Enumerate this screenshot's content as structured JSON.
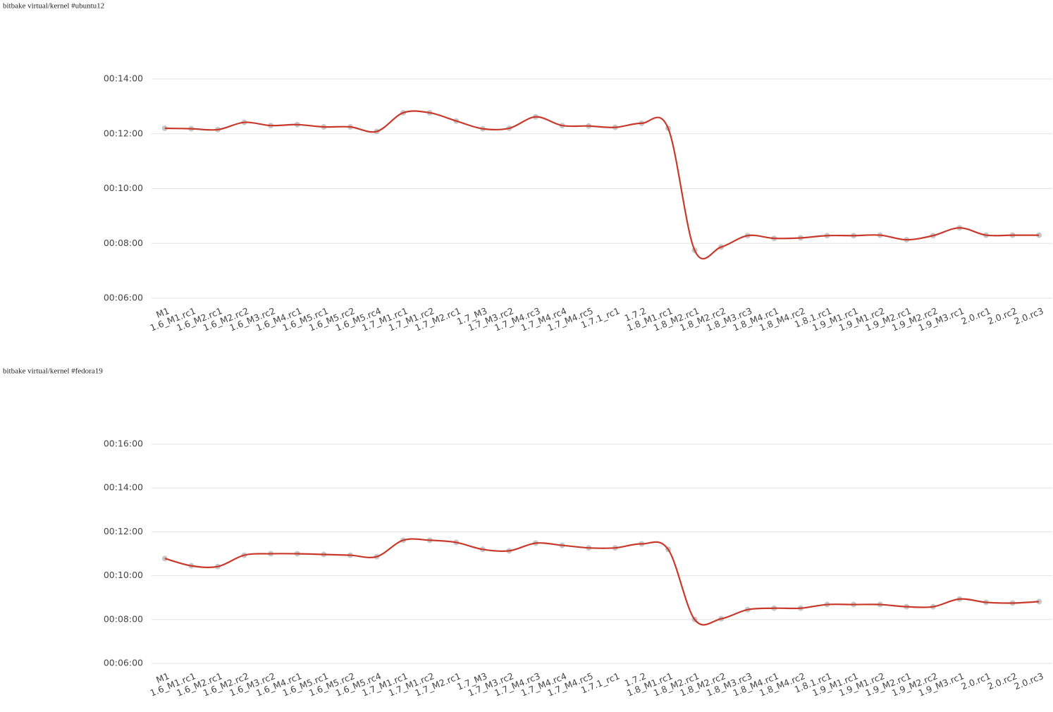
{
  "chart_data": [
    {
      "type": "line",
      "title": "bitbake virtual/kernel #ubuntu12",
      "categories": [
        "M1",
        "1.6_M1.rc1",
        "1.6_M2.rc1",
        "1.6_M2.rc2",
        "1.6_M3.rc2",
        "1.6_M4.rc1",
        "1.6_M5.rc1",
        "1.6_M5.rc2",
        "1.6_M5.rc4",
        "1.7_M1.rc1",
        "1.7_M1.rc2",
        "1.7_M2.rc1",
        "1.7_M3",
        "1.7_M3.rc2",
        "1.7_M4.rc3",
        "1.7_M4.rc4",
        "1.7_M4.rc5",
        "1.7.1_rc1",
        "1.7.2",
        "1.8_M1.rc1",
        "1.8_M2.rc1",
        "1.8_M2.rc2",
        "1.8_M3.rc3",
        "1.8_M4.rc1",
        "1.8_M4.rc2",
        "1.8.1.rc1",
        "1.9_M1.rc1",
        "1.9_M1.rc2",
        "1.9_M2.rc1",
        "1.9_M2.rc2",
        "1.9_M3.rc1",
        "2.0.rc1",
        "2.0.rc2",
        "2.0.rc3"
      ],
      "values": [
        732,
        731,
        729,
        745,
        738,
        740,
        735,
        735,
        725,
        766,
        766,
        748,
        731,
        732,
        757,
        738,
        737,
        734,
        743,
        732,
        465,
        472,
        497,
        491,
        492,
        497,
        497,
        498,
        488,
        497,
        514,
        498,
        498,
        498
      ],
      "color": "#c9392b",
      "ylim": [
        360,
        840
      ],
      "yticks": [
        {
          "value": 360,
          "label": "00:06:00"
        },
        {
          "value": 480,
          "label": "00:08:00"
        },
        {
          "value": 600,
          "label": "00:10:00"
        },
        {
          "value": 720,
          "label": "00:12:00"
        },
        {
          "value": 840,
          "label": "00:14:00"
        }
      ],
      "grid": true
    },
    {
      "type": "line",
      "title": "bitbake virtual/kernel #fedora19",
      "categories": [
        "M1",
        "1.6_M1.rc1",
        "1.6_M2.rc1",
        "1.6_M2.rc2",
        "1.6_M3.rc2",
        "1.6_M4.rc1",
        "1.6_M5.rc1",
        "1.6_M5.rc2",
        "1.6_M5.rc4",
        "1.7_M1.rc1",
        "1.7_M1.rc2",
        "1.7_M2.rc1",
        "1.7_M3",
        "1.7_M3.rc2",
        "1.7_M4.rc3",
        "1.7_M4.rc4",
        "1.7_M4.rc5",
        "1.7.1_rc1",
        "1.7.2",
        "1.8_M1.rc1",
        "1.8_M2.rc1",
        "1.8_M2.rc2",
        "1.8_M3.rc3",
        "1.8_M4.rc1",
        "1.8_M4.rc2",
        "1.8.1.rc1",
        "1.9_M1.rc1",
        "1.9_M1.rc2",
        "1.9_M2.rc1",
        "1.9_M2.rc2",
        "1.9_M3.rc1",
        "2.0.rc1",
        "2.0.rc2",
        "2.0.rc3"
      ],
      "values": [
        647,
        627,
        625,
        656,
        660,
        660,
        658,
        656,
        652,
        697,
        697,
        691,
        672,
        668,
        689,
        683,
        676,
        676,
        687,
        672,
        480,
        482,
        507,
        511,
        511,
        521,
        521,
        521,
        515,
        515,
        536,
        527,
        525,
        529
      ],
      "color": "#c9392b",
      "ylim": [
        360,
        960
      ],
      "yticks": [
        {
          "value": 360,
          "label": "00:06:00"
        },
        {
          "value": 480,
          "label": "00:08:00"
        },
        {
          "value": 600,
          "label": "00:10:00"
        },
        {
          "value": 720,
          "label": "00:12:00"
        },
        {
          "value": 840,
          "label": "00:14:00"
        },
        {
          "value": 960,
          "label": "00:16:00"
        }
      ],
      "grid": true
    }
  ]
}
